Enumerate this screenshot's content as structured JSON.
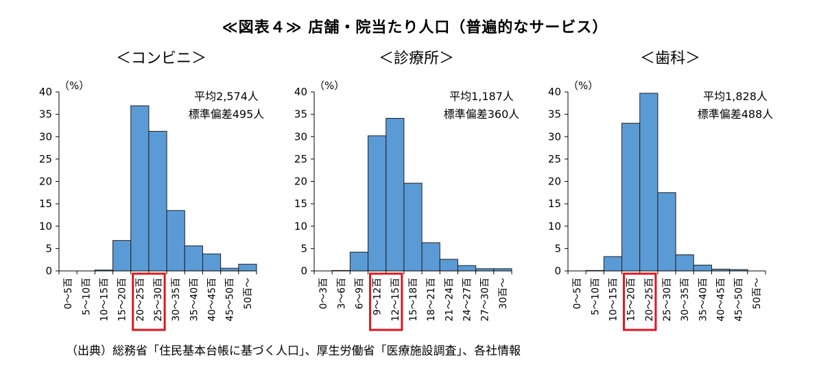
{
  "title": "≪図表４≫ 店舗・院当たり人口（普遍的なサービス）",
  "source": "（出典）総務省「住民基本台帳に基づく人口」、厚生労働省「医療施設調査」、各社情報",
  "colors": {
    "bar": "#5b9bd5",
    "bar_stroke": "#1f1f1f",
    "highlight": "#e0151b"
  },
  "chart_data": [
    {
      "type": "bar",
      "title": "＜コンビニ＞",
      "ylabel": "（%）",
      "ylim": [
        0,
        40
      ],
      "yticks": [
        "0",
        "5",
        "10",
        "15",
        "20",
        "25",
        "30",
        "35",
        "40"
      ],
      "categories": [
        "0～5百",
        "5～10百",
        "10～15百",
        "15～20百",
        "20～25百",
        "25～30百",
        "30～35百",
        "35～40百",
        "40～45百",
        "45～50百",
        "50百～"
      ],
      "values": [
        0,
        0,
        0.2,
        6.8,
        36.9,
        31.2,
        13.5,
        5.6,
        3.8,
        0.6,
        1.5
      ],
      "annotation": [
        "平均2,574人",
        "標準偏差495人"
      ],
      "highlight": [
        "20～25百",
        "25～30百"
      ]
    },
    {
      "type": "bar",
      "title": "＜診療所＞",
      "ylabel": "（%）",
      "ylim": [
        0,
        40
      ],
      "yticks": [
        "0",
        "5",
        "10",
        "15",
        "20",
        "25",
        "30",
        "35",
        "40"
      ],
      "categories": [
        "0～3百",
        "3～6百",
        "6～9百",
        "9～12百",
        "12～15百",
        "15～18百",
        "18～21百",
        "21～24百",
        "24～27百",
        "27～30百",
        "30百～"
      ],
      "values": [
        0,
        0.1,
        4.2,
        30.2,
        34.1,
        19.6,
        6.3,
        2.6,
        1.2,
        0.5,
        0.5
      ],
      "annotation": [
        "平均1,187人",
        "標準偏差360人"
      ],
      "highlight": [
        "9～12百",
        "12～15百"
      ]
    },
    {
      "type": "bar",
      "title": "＜歯科＞",
      "ylabel": "（%）",
      "ylim": [
        0,
        40
      ],
      "yticks": [
        "0",
        "5",
        "10",
        "15",
        "20",
        "25",
        "30",
        "35",
        "40"
      ],
      "categories": [
        "0～5百",
        "5～10百",
        "10～15百",
        "15～20百",
        "20～25百",
        "25～30百",
        "30～35百",
        "35～40百",
        "40～45百",
        "45～50百",
        "50百～"
      ],
      "values": [
        0,
        0.1,
        3.2,
        33.0,
        39.7,
        17.5,
        3.6,
        1.3,
        0.4,
        0.3,
        0
      ],
      "annotation": [
        "平均1,828人",
        "標準偏差488人"
      ],
      "highlight": [
        "15～20百",
        "20～25百"
      ]
    }
  ]
}
